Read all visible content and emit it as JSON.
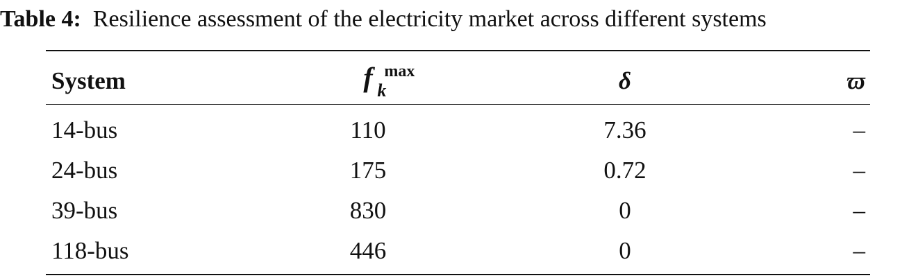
{
  "caption": {
    "label": "Table 4:",
    "text": "Resilience assessment of the electricity market across different systems"
  },
  "table": {
    "headers": {
      "system": "System",
      "f_base": "f",
      "f_sup": "max",
      "f_sub": "k",
      "delta": "δ",
      "omega": "ϖ"
    },
    "rows": [
      {
        "system": "14-bus",
        "fmax": "110",
        "delta": "7.36",
        "omega": "–"
      },
      {
        "system": "24-bus",
        "fmax": "175",
        "delta": "0.72",
        "omega": "–"
      },
      {
        "system": "39-bus",
        "fmax": "830",
        "delta": "0",
        "omega": "–"
      },
      {
        "system": "118-bus",
        "fmax": "446",
        "delta": "0",
        "omega": "–"
      }
    ]
  }
}
